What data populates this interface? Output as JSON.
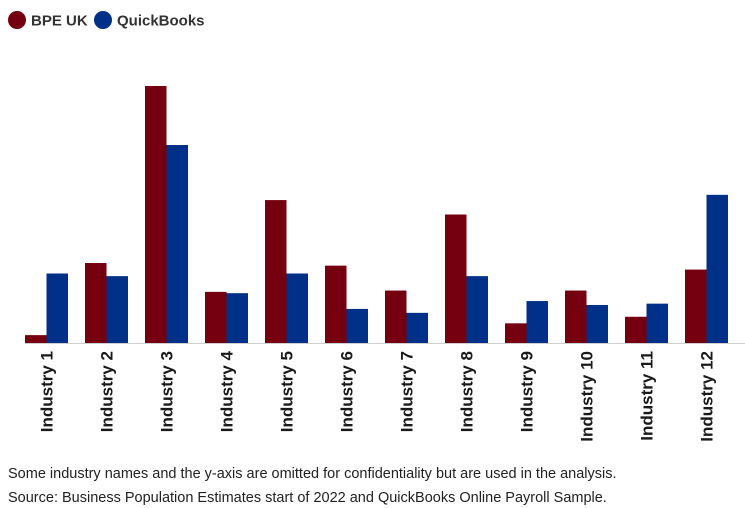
{
  "chart_data": {
    "type": "bar",
    "categories": [
      "Industry 1",
      "Industry 2",
      "Industry 3",
      "Industry 4",
      "Industry 5",
      "Industry 6",
      "Industry 7",
      "Industry 8",
      "Industry 9",
      "Industry 10",
      "Industry 11",
      "Industry 12"
    ],
    "series": [
      {
        "name": "BPE UK",
        "color": "#75000f",
        "values": [
          3.0,
          30.5,
          98.0,
          19.5,
          54.5,
          29.5,
          20.0,
          49.0,
          7.5,
          20.0,
          10.0,
          28.0
        ]
      },
      {
        "name": "QuickBooks",
        "color": "#003087",
        "values": [
          26.5,
          25.5,
          75.5,
          19.0,
          26.5,
          13.0,
          11.5,
          25.5,
          16.0,
          14.5,
          15.0,
          56.5
        ]
      }
    ],
    "ylim": [
      0,
      100
    ],
    "grid": false,
    "legend_position": "top-left",
    "y_axis_shown": false
  },
  "footnotes": {
    "line1": "Some industry names and the y-axis are omitted for confidentiality but are used in the analysis.",
    "line2": "Source: Business Population Estimates start of 2022 and QuickBooks Online Payroll Sample."
  }
}
